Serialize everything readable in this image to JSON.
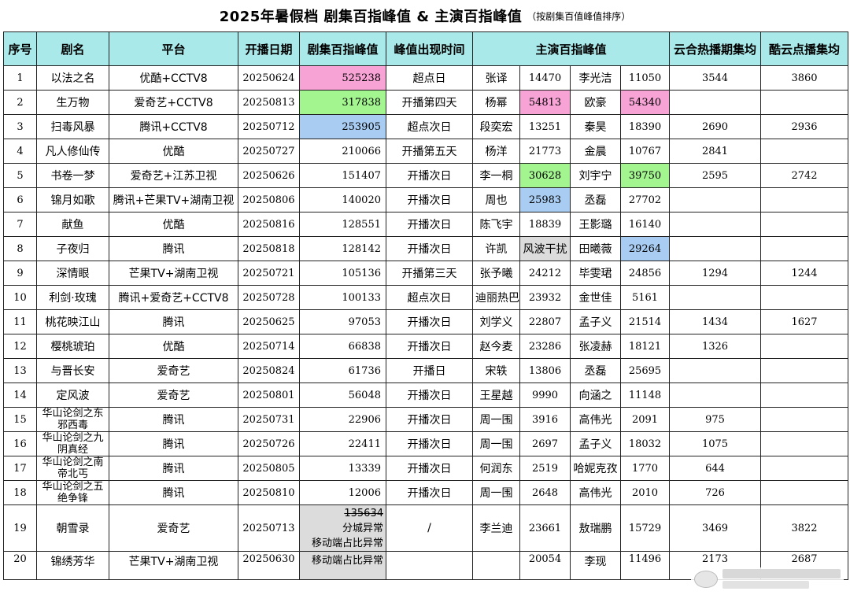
{
  "title": {
    "main": "2025年暑假档  剧集百指峰值 & 主演百指峰值",
    "sub": "（按剧集百值峰值排序）"
  },
  "headers": {
    "index": "序号",
    "drama": "剧名",
    "platform": "平台",
    "premiere": "开播日期",
    "drama_peak": "剧集百指峰值",
    "peak_time": "峰值出现时间",
    "lead_peak": "主演百指峰值",
    "yunhe": "云合热播期集均",
    "kuyun": "酷云点播集均"
  },
  "colors": {
    "header_bg": "#a9e9e9",
    "first": "#f7a3d6",
    "second": "#a3f590",
    "third": "#a8ccf2",
    "anomaly": "#dcdcdc"
  },
  "rows": [
    {
      "no": "1",
      "name": "以法之名",
      "platform": "优酷+CCTV8",
      "date": "20250624",
      "peak": "525238",
      "peak_time": "超点日",
      "a1": "张译",
      "v1": "14470",
      "a2": "李光洁",
      "v2": "11050",
      "yunhe": "3544",
      "kuyun": "3860"
    },
    {
      "no": "2",
      "name": "生万物",
      "platform": "爱奇艺+CCTV8",
      "date": "20250813",
      "peak": "317838",
      "peak_time": "开播第四天",
      "a1": "杨幂",
      "v1": "54813",
      "a2": "欧豪",
      "v2": "54340",
      "yunhe": "",
      "kuyun": ""
    },
    {
      "no": "3",
      "name": "扫毒风暴",
      "platform": "腾讯+CCTV8",
      "date": "20250712",
      "peak": "253905",
      "peak_time": "超点次日",
      "a1": "段奕宏",
      "v1": "13251",
      "a2": "秦昊",
      "v2": "18390",
      "yunhe": "2690",
      "kuyun": "2936"
    },
    {
      "no": "4",
      "name": "凡人修仙传",
      "platform": "优酷",
      "date": "20250727",
      "peak": "210066",
      "peak_time": "开播第五天",
      "a1": "杨洋",
      "v1": "21773",
      "a2": "金晨",
      "v2": "10767",
      "yunhe": "2841",
      "kuyun": ""
    },
    {
      "no": "5",
      "name": "书卷一梦",
      "platform": "爱奇艺+江苏卫视",
      "date": "20250626",
      "peak": "151407",
      "peak_time": "开播次日",
      "a1": "李一桐",
      "v1": "30628",
      "a2": "刘宇宁",
      "v2": "39750",
      "yunhe": "2595",
      "kuyun": "2742"
    },
    {
      "no": "6",
      "name": "锦月如歌",
      "platform": "腾讯+芒果TV+湖南卫视",
      "date": "20250806",
      "peak": "140020",
      "peak_time": "开播次日",
      "a1": "周也",
      "v1": "25983",
      "a2": "丞磊",
      "v2": "27702",
      "yunhe": "",
      "kuyun": ""
    },
    {
      "no": "7",
      "name": "献鱼",
      "platform": "优酷",
      "date": "20250816",
      "peak": "128551",
      "peak_time": "开播次日",
      "a1": "陈飞宇",
      "v1": "18839",
      "a2": "王影璐",
      "v2": "16140",
      "yunhe": "",
      "kuyun": ""
    },
    {
      "no": "8",
      "name": "子夜归",
      "platform": "腾讯",
      "date": "20250818",
      "peak": "128142",
      "peak_time": "开播次日",
      "a1": "许凯",
      "v1": "风波干扰",
      "a2": "田曦薇",
      "v2": "29264",
      "yunhe": "",
      "kuyun": ""
    },
    {
      "no": "9",
      "name": "深情眼",
      "platform": "芒果TV+湖南卫视",
      "date": "20250721",
      "peak": "105136",
      "peak_time": "开播第三天",
      "a1": "张予曦",
      "v1": "24212",
      "a2": "毕雯珺",
      "v2": "24856",
      "yunhe": "1294",
      "kuyun": "1244"
    },
    {
      "no": "10",
      "name": "利剑·玫瑰",
      "platform": "腾讯+爱奇艺+CCTV8",
      "date": "20250728",
      "peak": "100133",
      "peak_time": "超点次日",
      "a1": "迪丽热巴",
      "v1": "23932",
      "a2": "金世佳",
      "v2": "5161",
      "yunhe": "",
      "kuyun": ""
    },
    {
      "no": "11",
      "name": "桃花映江山",
      "platform": "腾讯",
      "date": "20250625",
      "peak": "97053",
      "peak_time": "开播次日",
      "a1": "刘学义",
      "v1": "22807",
      "a2": "孟子义",
      "v2": "21514",
      "yunhe": "1434",
      "kuyun": "1627"
    },
    {
      "no": "12",
      "name": "樱桃琥珀",
      "platform": "优酷",
      "date": "20250714",
      "peak": "66838",
      "peak_time": "开播次日",
      "a1": "赵今麦",
      "v1": "23286",
      "a2": "张凌赫",
      "v2": "18121",
      "yunhe": "1326",
      "kuyun": ""
    },
    {
      "no": "13",
      "name": "与晋长安",
      "platform": "爱奇艺",
      "date": "20250824",
      "peak": "61736",
      "peak_time": "开播日",
      "a1": "宋轶",
      "v1": "13806",
      "a2": "丞磊",
      "v2": "25695",
      "yunhe": "",
      "kuyun": ""
    },
    {
      "no": "14",
      "name": "定风波",
      "platform": "爱奇艺",
      "date": "20250801",
      "peak": "56048",
      "peak_time": "开播次日",
      "a1": "王星越",
      "v1": "9990",
      "a2": "向涵之",
      "v2": "11148",
      "yunhe": "",
      "kuyun": ""
    },
    {
      "no": "15",
      "name": "华山论剑之东邪西毒",
      "platform": "腾讯",
      "date": "20250731",
      "peak": "22906",
      "peak_time": "开播次日",
      "a1": "周一围",
      "v1": "3916",
      "a2": "高伟光",
      "v2": "2091",
      "yunhe": "975",
      "kuyun": ""
    },
    {
      "no": "16",
      "name": "华山论剑之九阴真经",
      "platform": "腾讯",
      "date": "20250726",
      "peak": "22411",
      "peak_time": "开播次日",
      "a1": "周一围",
      "v1": "2697",
      "a2": "孟子义",
      "v2": "18032",
      "yunhe": "1075",
      "kuyun": ""
    },
    {
      "no": "17",
      "name": "华山论剑之南帝北丐",
      "platform": "腾讯",
      "date": "20250805",
      "peak": "13339",
      "peak_time": "开播次日",
      "a1": "何润东",
      "v1": "2519",
      "a2": "哈妮克孜",
      "v2": "1770",
      "yunhe": "644",
      "kuyun": ""
    },
    {
      "no": "18",
      "name": "华山论剑之五绝争锋",
      "platform": "腾讯",
      "date": "20250810",
      "peak": "12006",
      "peak_time": "开播次日",
      "a1": "周一围",
      "v1": "2648",
      "a2": "高伟光",
      "v2": "2010",
      "yunhe": "726",
      "kuyun": ""
    },
    {
      "no": "19",
      "name": "朝雪录",
      "platform": "爱奇艺",
      "date": "20250713",
      "peak": "135634",
      "peak_note1": "分城异常",
      "peak_note2": "移动端占比异常",
      "peak_time": "/",
      "a1": "李兰迪",
      "v1": "23661",
      "a2": "敖瑞鹏",
      "v2": "15729",
      "yunhe": "3469",
      "kuyun": "3822"
    },
    {
      "no": "20",
      "name": "锦绣芳华",
      "platform": "芒果TV+湖南卫视",
      "date": "20250630",
      "peak": "",
      "peak_note1": "移动端占比异常",
      "peak_time": "",
      "a1": "",
      "v1": "20054",
      "a2": "李现",
      "v2": "11496",
      "yunhe": "2173",
      "kuyun": "2687"
    }
  ]
}
